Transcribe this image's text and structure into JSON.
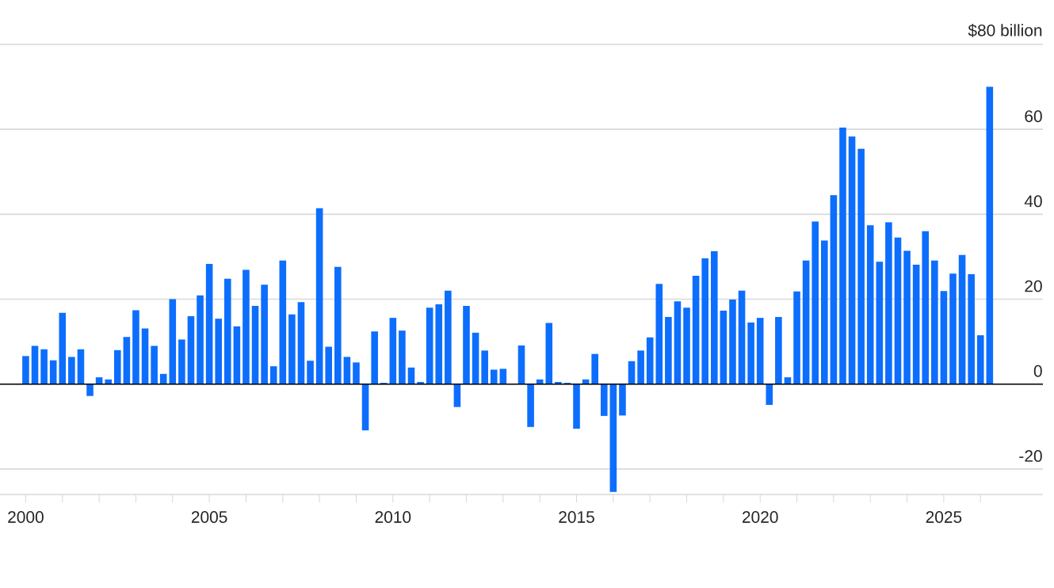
{
  "chart_data": {
    "type": "bar",
    "color": "#0d6efd",
    "grid": "y",
    "x": [
      2000,
      2000.25,
      2000.5,
      2000.75,
      2001,
      2001.25,
      2001.5,
      2001.75,
      2002,
      2002.25,
      2002.5,
      2002.75,
      2003,
      2003.25,
      2003.5,
      2003.75,
      2004,
      2004.25,
      2004.5,
      2004.75,
      2005,
      2005.25,
      2005.5,
      2005.75,
      2006,
      2006.25,
      2006.5,
      2006.75,
      2007,
      2007.25,
      2007.5,
      2007.75,
      2008,
      2008.25,
      2008.5,
      2008.75,
      2009,
      2009.25,
      2009.5,
      2009.75,
      2010,
      2010.25,
      2010.5,
      2010.75,
      2011,
      2011.25,
      2011.5,
      2011.75,
      2012,
      2012.25,
      2012.5,
      2012.75,
      2013,
      2013.25,
      2013.5,
      2013.75,
      2014,
      2014.25,
      2014.5,
      2014.75,
      2015,
      2015.25,
      2015.5,
      2015.75,
      2016,
      2016.25,
      2016.5,
      2016.75,
      2017,
      2017.25,
      2017.5,
      2017.75,
      2018,
      2018.25,
      2018.5,
      2018.75,
      2019,
      2019.25,
      2019.5,
      2019.75,
      2020,
      2020.25,
      2020.5,
      2020.75,
      2021,
      2021.25,
      2021.5,
      2021.75,
      2022,
      2022.25,
      2022.5,
      2022.75,
      2023,
      2023.25,
      2023.5,
      2023.75,
      2024,
      2024.25,
      2024.5,
      2024.75,
      2025,
      2025.25,
      2025.5,
      2025.75,
      2026,
      2026.25
    ],
    "values": [
      6.6,
      9,
      8.2,
      5.6,
      16.8,
      6.4,
      8.2,
      -2.8,
      1.6,
      1.1,
      8,
      11.1,
      17.4,
      13.1,
      9,
      2.4,
      20,
      10.5,
      16,
      20.9,
      28.3,
      15.4,
      24.8,
      13.6,
      26.9,
      18.4,
      23.4,
      4.2,
      29.1,
      16.4,
      19.3,
      5.5,
      41.4,
      8.8,
      27.6,
      6.4,
      5.1,
      -10.9,
      12.4,
      0.3,
      15.6,
      12.6,
      3.9,
      0.5,
      18,
      18.8,
      22,
      -5.4,
      18.4,
      12.1,
      7.9,
      3.4,
      3.6,
      null,
      9.1,
      -10.1,
      1.1,
      14.4,
      0.5,
      0.3,
      -10.5,
      1.1,
      7.1,
      -7.5,
      -25.4,
      -7.4,
      5.4,
      7.9,
      11,
      23.6,
      15.8,
      19.5,
      18,
      25.5,
      29.6,
      31.3,
      17.3,
      19.9,
      22,
      14.5,
      15.6,
      -4.9,
      15.8,
      1.6,
      21.8,
      29.1,
      38.3,
      33.8,
      44.5,
      60.4,
      58.3,
      55.4,
      37.4,
      28.8,
      38.1,
      34.5,
      31.4,
      28.1,
      36,
      29.1,
      21.9,
      26,
      30.4,
      25.9,
      11.5,
      70
    ],
    "xlim": [
      1999.3,
      2027.7
    ],
    "xticks": [
      2000,
      {
        "value": 2001,
        "label": null
      },
      {
        "value": 2002,
        "label": null
      },
      {
        "value": 2003,
        "label": null
      },
      {
        "value": 2004,
        "label": null
      },
      2005,
      {
        "value": 2006,
        "label": null
      },
      {
        "value": 2007,
        "label": null
      },
      {
        "value": 2008,
        "label": null
      },
      {
        "value": 2009,
        "label": null
      },
      2010,
      {
        "value": 2011,
        "label": null
      },
      {
        "value": 2012,
        "label": null
      },
      {
        "value": 2013,
        "label": null
      },
      {
        "value": 2014,
        "label": null
      },
      2015,
      {
        "value": 2016,
        "label": null
      },
      {
        "value": 2017,
        "label": null
      },
      {
        "value": 2018,
        "label": null
      },
      {
        "value": 2019,
        "label": null
      },
      2020,
      {
        "value": 2021,
        "label": null
      },
      {
        "value": 2022,
        "label": null
      },
      {
        "value": 2023,
        "label": null
      },
      {
        "value": 2024,
        "label": null
      },
      2025,
      {
        "value": 2026,
        "label": null
      }
    ],
    "ylim": [
      -26,
      80
    ],
    "yticks": [
      -20,
      0,
      20,
      40,
      60,
      {
        "value": 80,
        "label": "$80 billion"
      }
    ]
  }
}
